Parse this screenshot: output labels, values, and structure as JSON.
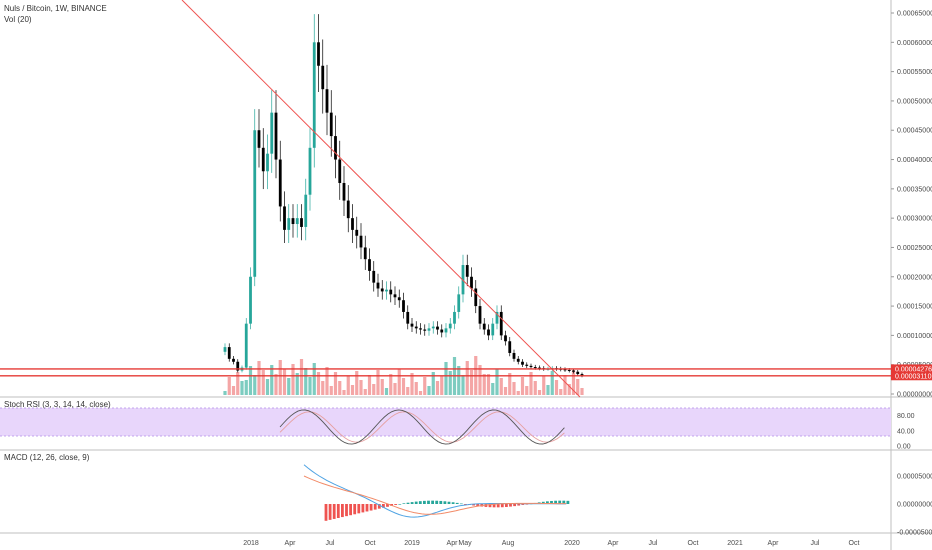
{
  "header": {
    "symbol_line": "Nuls / Bitcoin, 1W, BINANCE",
    "volume_label": "Vol (20)"
  },
  "colors": {
    "up": "#26a69a",
    "down": "#000000",
    "vol_up": "#7dccc0",
    "vol_down": "#f4a6a6",
    "level": "#e53935",
    "trend": "#ef5350",
    "rsi_fill": "#e8d6fb",
    "rsi_k": "#555555",
    "rsi_d": "#e6a0a0",
    "macd_line": "#4fa3e3",
    "signal_line": "#f28b68",
    "hist_pos": "#26a69a",
    "hist_neg": "#ef5350"
  },
  "chart_data": [
    {
      "type": "candlestick",
      "ylim": [
        0,
        0.00067
      ],
      "y_ticks": [
        "0.00065000",
        "0.00060000",
        "0.00055000",
        "0.00050000",
        "0.00045000",
        "0.00040000",
        "0.00035000",
        "0.00030000",
        "0.00025000",
        "0.00020000",
        "0.00015000",
        "0.00010000",
        "0.00005000",
        "0.00000000"
      ],
      "x_ticks": [
        "2018",
        "Apr",
        "Jul",
        "Oct",
        "2019",
        "Apr",
        "May",
        "Aug",
        "2020",
        "Apr",
        "Jul",
        "Oct",
        "2021",
        "Apr",
        "Jul",
        "Oct"
      ],
      "price_labels": [
        "0.00004276",
        "0.00003110"
      ],
      "horizontal_levels": [
        4.276e-05,
        3.11e-05
      ],
      "grid": false
    },
    {
      "type": "line",
      "title": "Stoch RSI (3, 3, 14, 14, close)",
      "ylim": [
        0,
        100
      ],
      "y_ticks": [
        "80.00",
        "40.00",
        "0.00"
      ],
      "band": [
        20,
        80
      ]
    },
    {
      "type": "line",
      "title": "MACD (12, 26, close, 9)",
      "y_ticks": [
        "0.00005000",
        "0.00000000",
        "-0.00005000"
      ]
    }
  ]
}
